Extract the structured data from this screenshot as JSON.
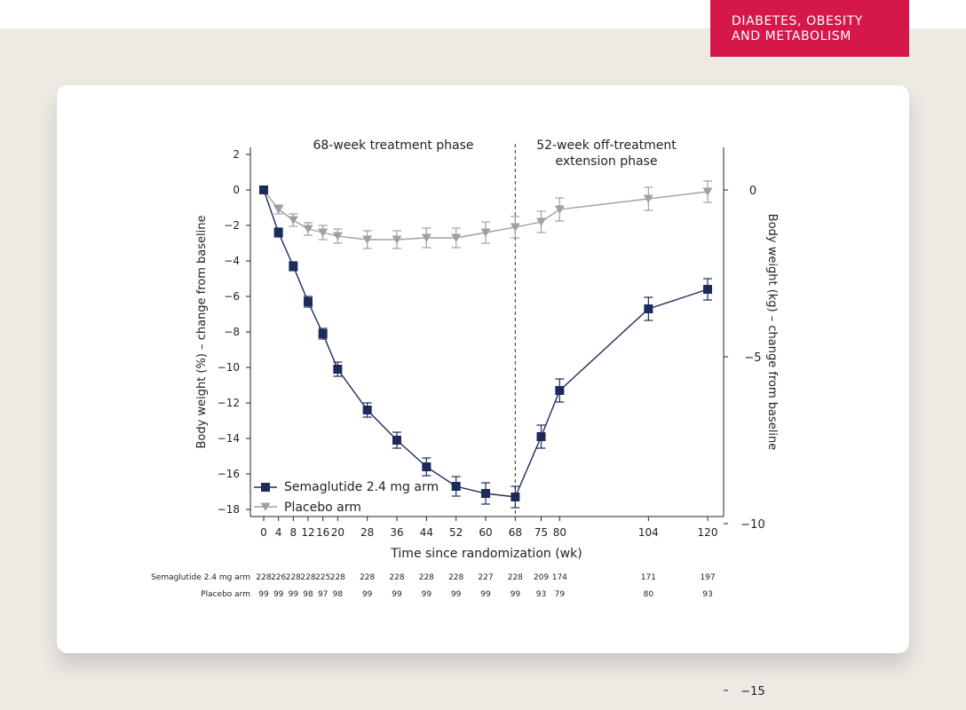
{
  "journal": {
    "line1": "DIABETES, OBESITY",
    "line2": "AND METABOLISM"
  },
  "colors": {
    "semaglutide": "#1c2a5c",
    "placebo": "#a0a0a0",
    "badge": "#d6174a"
  },
  "chart_data": {
    "type": "line",
    "phases": {
      "treatment": "68-week treatment phase",
      "extension_line1": "52-week off-treatment",
      "extension_line2": "extension phase",
      "divider_x": 68
    },
    "xlabel": "Time since randomization (wk)",
    "ylabel": "Body weight (%) – change from baseline",
    "ylabel_right": "Body weight (kg) – change from baseline",
    "x": [
      0,
      4,
      8,
      12,
      16,
      20,
      28,
      36,
      44,
      52,
      60,
      68,
      75,
      80,
      104,
      120
    ],
    "x_ticks": [
      "0",
      "4",
      "8",
      "12",
      "16",
      "20",
      "28",
      "36",
      "44",
      "52",
      "60",
      "68",
      "75",
      "80",
      "104",
      "120"
    ],
    "xlim": [
      -2,
      124
    ],
    "ylim": [
      -18,
      2
    ],
    "y_ticks": [
      2,
      0,
      -2,
      -4,
      -6,
      -8,
      -10,
      -12,
      -14,
      -16,
      -18
    ],
    "y_right_ticks": [
      0,
      -5,
      -10,
      -15
    ],
    "y_right_label_values": [
      "0",
      "−5",
      "−10",
      "−15"
    ],
    "y_tick_labels": [
      "2",
      "0",
      "−2",
      "−4",
      "−6",
      "−8",
      "−10",
      "−12",
      "−14",
      "−16",
      "−18"
    ],
    "series": [
      {
        "name": "Semaglutide 2.4 mg arm",
        "marker": "square",
        "values": [
          0,
          -2.4,
          -4.3,
          -6.3,
          -8.1,
          -10.1,
          -12.4,
          -14.1,
          -15.6,
          -16.7,
          -17.1,
          -17.3,
          -13.9,
          -11.3,
          -6.7,
          -5.6
        ],
        "err": [
          0,
          0.25,
          0.25,
          0.3,
          0.3,
          0.4,
          0.4,
          0.45,
          0.5,
          0.55,
          0.6,
          0.6,
          0.65,
          0.65,
          0.65,
          0.6
        ]
      },
      {
        "name": "Placebo arm",
        "marker": "triangle-down",
        "values": [
          0,
          -1.1,
          -1.7,
          -2.2,
          -2.4,
          -2.6,
          -2.8,
          -2.8,
          -2.7,
          -2.7,
          -2.4,
          -2.1,
          -1.8,
          -1.1,
          -0.5,
          -0.1
        ],
        "err": [
          0,
          0.25,
          0.35,
          0.35,
          0.4,
          0.4,
          0.5,
          0.5,
          0.55,
          0.55,
          0.6,
          0.6,
          0.6,
          0.65,
          0.65,
          0.6
        ]
      }
    ],
    "n_at_risk": {
      "rows": [
        {
          "label": "Semaglutide 2.4 mg arm",
          "values": [
            "228",
            "226",
            "228",
            "228",
            "225",
            "228",
            "228",
            "228",
            "228",
            "228",
            "227",
            "228",
            "209",
            "174",
            "171",
            "197"
          ]
        },
        {
          "label": "Placebo arm",
          "values": [
            "99",
            "99",
            "99",
            "98",
            "97",
            "98",
            "99",
            "99",
            "99",
            "99",
            "99",
            "99",
            "93",
            "79",
            "80",
            "93"
          ]
        }
      ]
    },
    "legend_placement": "bottom-left",
    "grid": false
  }
}
